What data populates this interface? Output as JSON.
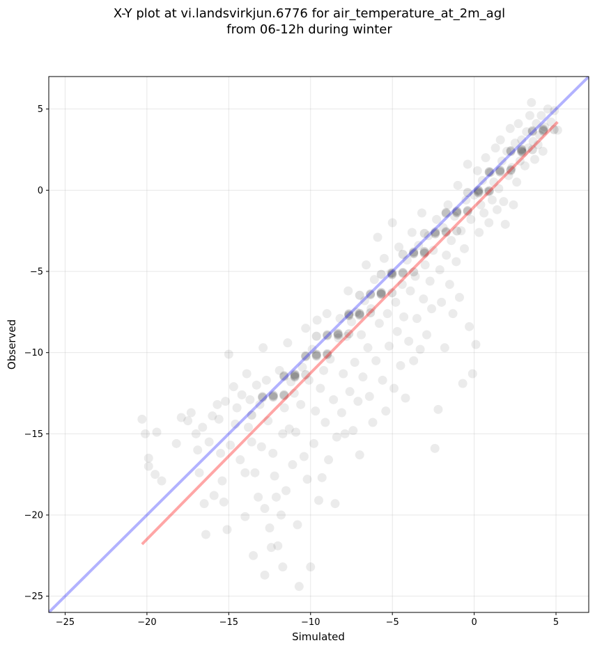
{
  "chart_data": {
    "type": "scatter",
    "title_line1": "X-Y plot at vi.landsvirkjun.6776 for air_temperature_at_2m_agl",
    "title_line2": "from 06-12h during winter",
    "xlabel": "Simulated",
    "ylabel": "Observed",
    "xlim": [
      -26,
      7
    ],
    "ylim": [
      -26,
      7
    ],
    "xticks": [
      -25,
      -20,
      -15,
      -10,
      -5,
      0,
      5
    ],
    "yticks": [
      -25,
      -20,
      -15,
      -10,
      -5,
      0,
      5
    ],
    "xtick_labels": [
      "−25",
      "−20",
      "−15",
      "−10",
      "−5",
      "0",
      "5"
    ],
    "ytick_labels": [
      "−25",
      "−20",
      "−15",
      "−10",
      "−5",
      "0",
      "5"
    ],
    "grid": true,
    "series": [
      {
        "kind": "points",
        "color": "#000000",
        "alpha": 0.08,
        "marker": "circle",
        "notes": "dense cloud of ~1500 observations along y≈x",
        "points": [
          [
            -20.3,
            -14.1
          ],
          [
            -20.1,
            -15.0
          ],
          [
            -19.9,
            -16.5
          ],
          [
            -19.9,
            -17.0
          ],
          [
            -19.5,
            -17.5
          ],
          [
            -19.4,
            -14.9
          ],
          [
            -19.1,
            -17.9
          ],
          [
            -18.2,
            -15.6
          ],
          [
            -17.9,
            -14.0
          ],
          [
            -17.5,
            -14.2
          ],
          [
            -17.3,
            -13.7
          ],
          [
            -17.0,
            -15.0
          ],
          [
            -16.9,
            -16.0
          ],
          [
            -16.8,
            -17.4
          ],
          [
            -16.6,
            -14.6
          ],
          [
            -16.5,
            -19.3
          ],
          [
            -16.4,
            -21.2
          ],
          [
            -16.2,
            -15.5
          ],
          [
            -16.0,
            -13.9
          ],
          [
            -15.9,
            -18.8
          ],
          [
            -15.7,
            -13.2
          ],
          [
            -15.6,
            -14.1
          ],
          [
            -15.5,
            -16.2
          ],
          [
            -15.4,
            -17.9
          ],
          [
            -15.3,
            -19.2
          ],
          [
            -15.2,
            -13.0
          ],
          [
            -15.1,
            -20.9
          ],
          [
            -15.0,
            -10.1
          ],
          [
            -14.9,
            -15.7
          ],
          [
            -14.7,
            -12.1
          ],
          [
            -14.6,
            -14.4
          ],
          [
            -14.5,
            -13.4
          ],
          [
            -14.3,
            -16.6
          ],
          [
            -14.2,
            -12.6
          ],
          [
            -14.0,
            -17.4
          ],
          [
            -14.0,
            -20.1
          ],
          [
            -13.9,
            -11.3
          ],
          [
            -13.8,
            -14.6
          ],
          [
            -13.7,
            -12.9
          ],
          [
            -13.6,
            -15.5
          ],
          [
            -13.5,
            -22.5
          ],
          [
            -13.4,
            -17.4
          ],
          [
            -13.3,
            -12.0
          ],
          [
            -13.2,
            -18.9
          ],
          [
            -13.1,
            -13.2
          ],
          [
            -13.0,
            -15.8
          ],
          [
            -12.9,
            -9.7
          ],
          [
            -12.8,
            -23.7
          ],
          [
            -12.8,
            -19.6
          ],
          [
            -12.7,
            -11.7
          ],
          [
            -12.6,
            -14.2
          ],
          [
            -12.5,
            -20.8
          ],
          [
            -12.4,
            -22.0
          ],
          [
            -12.3,
            -16.2
          ],
          [
            -12.2,
            -17.6
          ],
          [
            -12.1,
            -18.9
          ],
          [
            -12.0,
            -21.9
          ],
          [
            -11.9,
            -11.1
          ],
          [
            -11.8,
            -20.0
          ],
          [
            -11.7,
            -23.2
          ],
          [
            -11.7,
            -15.0
          ],
          [
            -11.6,
            -13.4
          ],
          [
            -11.5,
            -18.5
          ],
          [
            -11.4,
            -9.4
          ],
          [
            -11.3,
            -14.7
          ],
          [
            -11.2,
            -11.8
          ],
          [
            -11.1,
            -16.9
          ],
          [
            -11.0,
            -12.5
          ],
          [
            -10.9,
            -14.9
          ],
          [
            -10.8,
            -20.6
          ],
          [
            -10.7,
            -24.4
          ],
          [
            -10.6,
            -13.2
          ],
          [
            -10.5,
            -10.9
          ],
          [
            -10.4,
            -16.4
          ],
          [
            -10.3,
            -8.5
          ],
          [
            -10.2,
            -17.8
          ],
          [
            -10.1,
            -11.7
          ],
          [
            -10.0,
            -23.2
          ],
          [
            -9.9,
            -9.8
          ],
          [
            -9.8,
            -15.6
          ],
          [
            -9.7,
            -13.6
          ],
          [
            -9.6,
            -8.0
          ],
          [
            -9.5,
            -19.1
          ],
          [
            -9.4,
            -12.2
          ],
          [
            -9.3,
            -17.7
          ],
          [
            -9.2,
            -11.1
          ],
          [
            -9.1,
            -14.3
          ],
          [
            -9.0,
            -7.6
          ],
          [
            -8.9,
            -16.6
          ],
          [
            -8.8,
            -10.4
          ],
          [
            -8.6,
            -12.9
          ],
          [
            -8.5,
            -19.3
          ],
          [
            -8.4,
            -15.2
          ],
          [
            -8.3,
            -9.1
          ],
          [
            -8.2,
            -7.9
          ],
          [
            -8.1,
            -13.7
          ],
          [
            -8.0,
            -11.3
          ],
          [
            -7.9,
            -15.0
          ],
          [
            -7.8,
            -9.0
          ],
          [
            -7.7,
            -6.2
          ],
          [
            -7.6,
            -12.4
          ],
          [
            -7.5,
            -8.1
          ],
          [
            -7.4,
            -14.8
          ],
          [
            -7.3,
            -10.6
          ],
          [
            -7.2,
            -7.5
          ],
          [
            -7.1,
            -13.0
          ],
          [
            -7.0,
            -16.3
          ],
          [
            -6.9,
            -8.9
          ],
          [
            -6.8,
            -11.5
          ],
          [
            -6.7,
            -6.8
          ],
          [
            -6.6,
            -4.6
          ],
          [
            -6.5,
            -9.7
          ],
          [
            -6.4,
            -12.7
          ],
          [
            -6.3,
            -7.3
          ],
          [
            -6.2,
            -14.3
          ],
          [
            -6.1,
            -5.5
          ],
          [
            -6.0,
            -10.5
          ],
          [
            -5.9,
            -2.9
          ],
          [
            -5.8,
            -8.2
          ],
          [
            -5.7,
            -6.4
          ],
          [
            -5.6,
            -11.7
          ],
          [
            -5.5,
            -4.2
          ],
          [
            -5.4,
            -13.6
          ],
          [
            -5.3,
            -7.6
          ],
          [
            -5.2,
            -9.6
          ],
          [
            -5.1,
            -5.1
          ],
          [
            -5.0,
            -2.0
          ],
          [
            -4.9,
            -12.2
          ],
          [
            -4.8,
            -6.9
          ],
          [
            -4.7,
            -8.7
          ],
          [
            -4.6,
            -3.5
          ],
          [
            -4.5,
            -10.8
          ],
          [
            -4.4,
            -5.8
          ],
          [
            -4.3,
            -7.8
          ],
          [
            -4.2,
            -12.8
          ],
          [
            -4.1,
            -4.3
          ],
          [
            -4.0,
            -9.3
          ],
          [
            -3.9,
            -6.2
          ],
          [
            -3.8,
            -2.6
          ],
          [
            -3.7,
            -10.5
          ],
          [
            -3.6,
            -5.3
          ],
          [
            -3.5,
            -7.9
          ],
          [
            -3.4,
            -3.4
          ],
          [
            -3.3,
            -9.8
          ],
          [
            -3.2,
            -1.4
          ],
          [
            -3.1,
            -6.7
          ],
          [
            -3.0,
            -4.6
          ],
          [
            -2.9,
            -8.9
          ],
          [
            -2.8,
            -2.8
          ],
          [
            -2.7,
            -5.6
          ],
          [
            -2.6,
            -7.3
          ],
          [
            -2.5,
            -3.7
          ],
          [
            -2.4,
            -15.9
          ],
          [
            -2.3,
            -1.8
          ],
          [
            -2.2,
            -13.5
          ],
          [
            -2.1,
            -4.9
          ],
          [
            -2.0,
            -6.9
          ],
          [
            -1.9,
            -2.3
          ],
          [
            -1.8,
            -9.7
          ],
          [
            -1.7,
            -4.0
          ],
          [
            -1.6,
            -0.9
          ],
          [
            -1.5,
            -5.8
          ],
          [
            -1.4,
            -3.1
          ],
          [
            -1.3,
            -7.6
          ],
          [
            -1.2,
            -1.6
          ],
          [
            -1.1,
            -4.4
          ],
          [
            -1.0,
            0.3
          ],
          [
            -0.9,
            -6.6
          ],
          [
            -0.8,
            -2.5
          ],
          [
            -0.7,
            -11.9
          ],
          [
            -0.6,
            -3.6
          ],
          [
            -0.5,
            -0.6
          ],
          [
            -0.4,
            1.6
          ],
          [
            -0.3,
            -8.4
          ],
          [
            -0.2,
            -1.8
          ],
          [
            -0.1,
            -11.3
          ],
          [
            0.0,
            -0.3
          ],
          [
            0.1,
            -9.5
          ],
          [
            0.2,
            1.2
          ],
          [
            0.3,
            -2.6
          ],
          [
            0.4,
            -0.9
          ],
          [
            0.5,
            0.6
          ],
          [
            0.6,
            -1.4
          ],
          [
            0.7,
            2.0
          ],
          [
            0.8,
            -0.1
          ],
          [
            0.9,
            -2.0
          ],
          [
            1.0,
            1.1
          ],
          [
            1.1,
            -0.6
          ],
          [
            1.2,
            0.5
          ],
          [
            1.3,
            2.6
          ],
          [
            1.4,
            -1.2
          ],
          [
            1.5,
            0.1
          ],
          [
            1.6,
            3.1
          ],
          [
            1.7,
            1.8
          ],
          [
            1.8,
            -0.7
          ],
          [
            1.9,
            -2.1
          ],
          [
            2.0,
            2.4
          ],
          [
            2.1,
            0.9
          ],
          [
            2.2,
            3.8
          ],
          [
            2.3,
            1.4
          ],
          [
            2.4,
            -0.9
          ],
          [
            2.5,
            2.9
          ],
          [
            2.6,
            0.5
          ],
          [
            2.7,
            4.1
          ],
          [
            2.8,
            1.8
          ],
          [
            2.9,
            3.1
          ],
          [
            3.0,
            2.3
          ],
          [
            3.1,
            1.5
          ],
          [
            3.2,
            3.6
          ],
          [
            3.3,
            2.6
          ],
          [
            3.4,
            4.6
          ],
          [
            3.5,
            5.4
          ],
          [
            3.6,
            3.0
          ],
          [
            3.7,
            1.9
          ],
          [
            3.8,
            4.1
          ],
          [
            3.9,
            2.8
          ],
          [
            4.0,
            3.4
          ],
          [
            4.1,
            4.6
          ],
          [
            4.2,
            2.4
          ],
          [
            4.3,
            3.9
          ],
          [
            4.5,
            5.0
          ],
          [
            4.7,
            4.2
          ],
          [
            4.9,
            4.9
          ],
          [
            5.1,
            3.7
          ]
        ]
      },
      {
        "kind": "line",
        "name": "",
        "color": "#0000ff",
        "alpha": 0.3,
        "x": [
          -26,
          7
        ],
        "y": [
          -26,
          7
        ]
      },
      {
        "kind": "line",
        "name": "",
        "color": "#ff0000",
        "alpha": 0.35,
        "x": [
          -20.3,
          5.1
        ],
        "y": [
          -21.8,
          4.2
        ]
      }
    ]
  }
}
